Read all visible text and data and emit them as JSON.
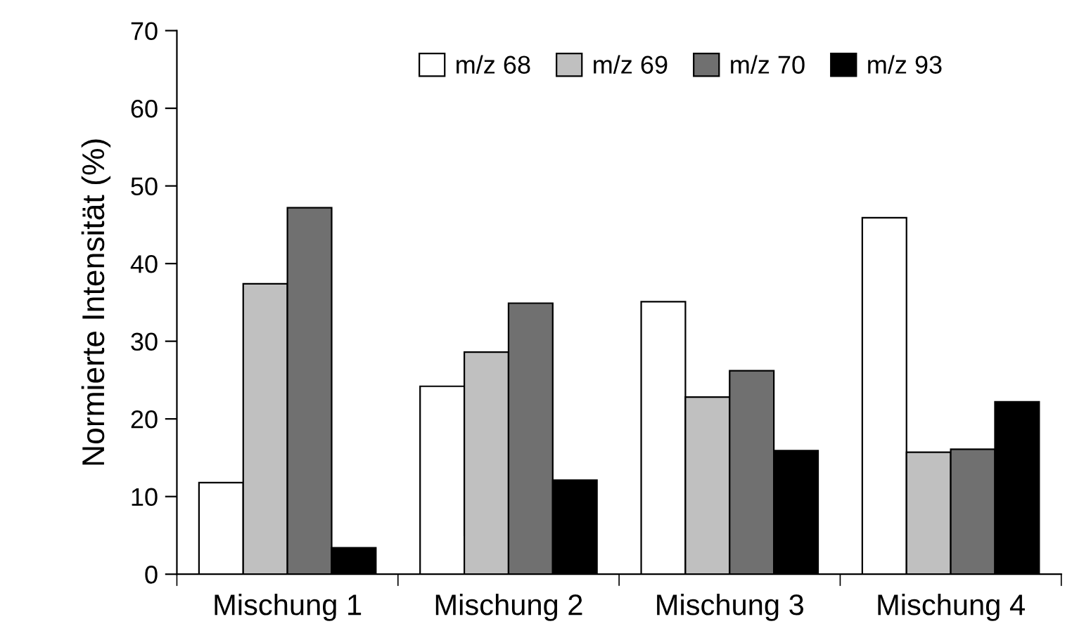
{
  "chart_data": {
    "type": "bar",
    "ylabel": "Normierte Intensität (%)",
    "categories": [
      "Mischung 1",
      "Mischung 2",
      "Mischung 3",
      "Mischung 4"
    ],
    "series": [
      {
        "name": "m/z 68",
        "color": "#ffffff",
        "values": [
          11.8,
          24.2,
          35.1,
          45.9
        ]
      },
      {
        "name": "m/z 69",
        "color": "#c0c0c0",
        "values": [
          37.4,
          28.6,
          22.8,
          15.7
        ]
      },
      {
        "name": "m/z 70",
        "color": "#707070",
        "values": [
          47.2,
          34.9,
          26.2,
          16.1
        ]
      },
      {
        "name": "m/z 93",
        "color": "#000000",
        "values": [
          3.4,
          12.1,
          15.9,
          22.2
        ]
      }
    ],
    "ylim": [
      0,
      70
    ],
    "yticks": [
      0,
      10,
      20,
      30,
      40,
      50,
      60,
      70
    ],
    "grid": false,
    "legend": "top"
  }
}
